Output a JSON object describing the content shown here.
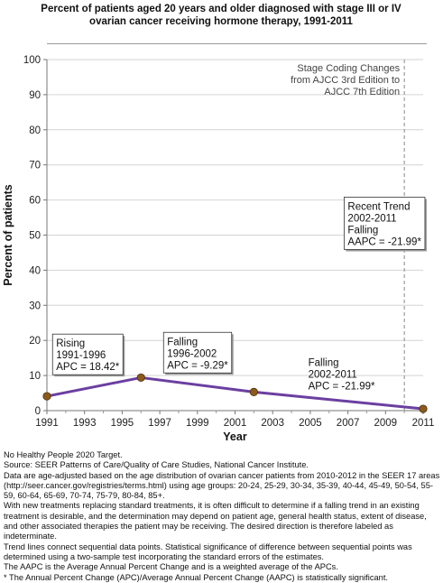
{
  "chart_data": {
    "type": "line",
    "title": "Percent of patients aged 20 years and older diagnosed with stage III or IV ovarian cancer  receiving hormone therapy, 1991-2011",
    "xlabel": "Year",
    "ylabel": "Percent of patients",
    "xlim": [
      1991,
      2011
    ],
    "ylim": [
      0,
      100
    ],
    "x_ticks": [
      "1991",
      "1993",
      "1995",
      "1997",
      "1999",
      "2001",
      "2003",
      "2005",
      "2007",
      "2009",
      "2011"
    ],
    "y_ticks": [
      "0",
      "10",
      "20",
      "30",
      "40",
      "50",
      "60",
      "70",
      "80",
      "90",
      "100"
    ],
    "grid": "horizontal",
    "series": [
      {
        "x": [
          1991,
          1996,
          2002,
          2011
        ],
        "y": [
          4.1,
          9.4,
          5.3,
          0.5
        ],
        "color": "#6b3fa0",
        "marker_color": "#8b5a1b"
      }
    ],
    "stage_change": {
      "x": 2010,
      "label": [
        "Stage Coding Changes",
        "from AJCC 3rd Edition to",
        "AJCC 7th Edition"
      ]
    },
    "annotations": [
      {
        "lines": [
          "Rising",
          "1991-1996",
          "APC = 18.42*"
        ],
        "boxed": true,
        "anchor_x": 1991.3,
        "anchor_y": 21.8
      },
      {
        "lines": [
          "Falling",
          "1996-2002",
          "APC = -9.29*"
        ],
        "boxed": true,
        "anchor_x": 1997.2,
        "anchor_y": 22.3
      },
      {
        "lines": [
          "Falling",
          "2002-2011",
          "APC = -21.99*"
        ],
        "boxed": false,
        "anchor_x": 2004.7,
        "anchor_y": 16.3
      },
      {
        "lines": [
          "Recent Trend",
          "2002-2011",
          "Falling",
          "AAPC = -21.99*"
        ],
        "boxed": true,
        "anchor_x": 2006.8,
        "anchor_y": 60.8
      }
    ]
  },
  "notes": [
    "No Healthy People 2020 Target.",
    "Source: SEER Patterns of Care/Quality of Care Studies, National Cancer Institute.",
    "Data are age-adjusted based on the age distribution of ovarian cancer patients from 2010-2012 in the SEER 17 areas (http://seer.cancer.gov/registries/terms.html) using age groups: 20-24, 25-29, 30-34, 35-39, 40-44, 45-49, 50-54, 55-59, 60-64, 65-69, 70-74, 75-79, 80-84, 85+.",
    "With new treatments replacing standard treatments, it is often difficult to determine if a falling trend in an existing treatment is desirable, and the determination may depend on patient age, general health status, extent of disease, and other associated therapies the patient may be receiving.  The desired direction is therefore labeled as indeterminate.",
    "Trend lines connect sequential data points. Statistical significance of difference between sequential points was determined using a two-sample test incorporating the standard errors of the estimates.",
    "The AAPC is the Average Annual Percent Change and is a weighted average of the APCs.",
    "* The Annual Percent Change (APC)/Average Annual Percent Change (AAPC) is statistically significant."
  ]
}
